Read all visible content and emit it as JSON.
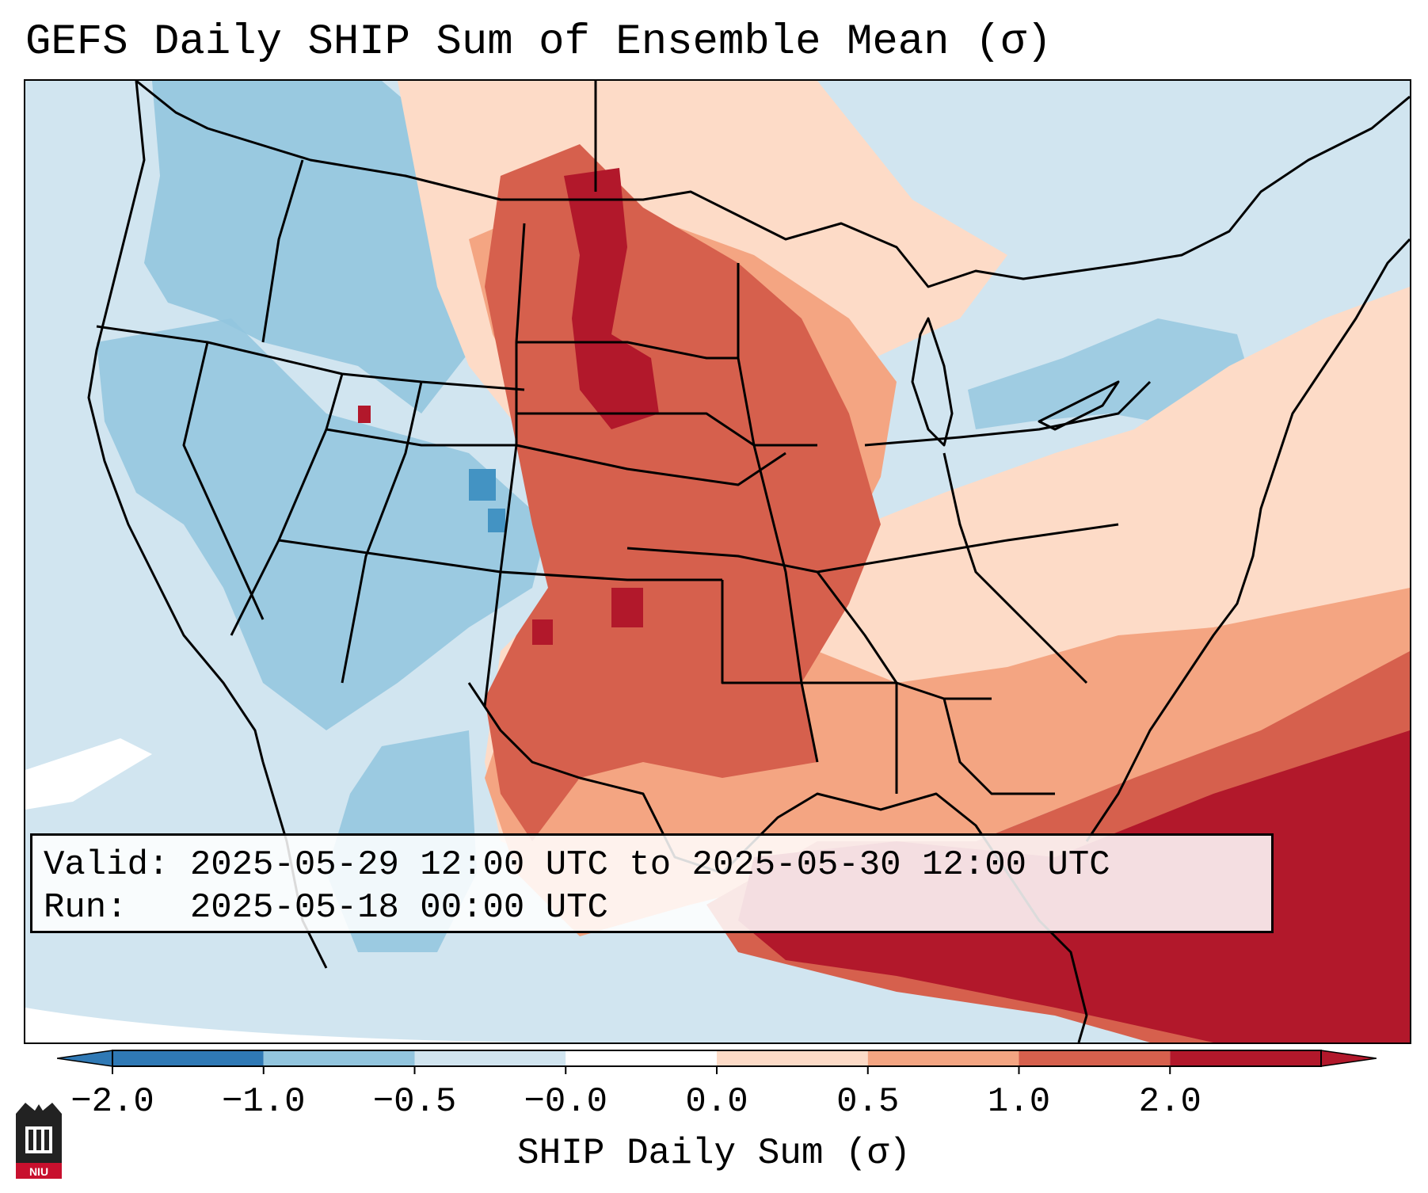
{
  "title": "GEFS Daily SHIP Sum of Ensemble Mean (σ)",
  "info": {
    "valid_label": "Valid:",
    "valid_value": "2025-05-29 12:00 UTC to 2025-05-30 12:00 UTC",
    "run_label": "Run:",
    "run_value": "2025-05-18 00:00 UTC"
  },
  "colorbar": {
    "label": "SHIP Daily Sum (σ)",
    "ticks": [
      "−2.0",
      "−1.0",
      "−0.5",
      "−0.0",
      "0.0",
      "0.5",
      "1.0",
      "2.0"
    ],
    "bins": [
      "#2f79b5",
      "#92c5de",
      "#d1e5f0",
      "#ffffff",
      "#fddbc7",
      "#f4a582",
      "#d6604d",
      "#b2182b"
    ]
  },
  "logo": {
    "text": "NIU",
    "color": "#c8102e"
  },
  "colors": {
    "strong_neg": "#4393c3",
    "neg": "#92c5de",
    "weak_neg": "#d1e5f0",
    "weak_pos": "#fddbc7",
    "pos": "#f4a582",
    "strong_pos": "#d6604d",
    "very_strong_pos": "#b2182b",
    "border": "#000000"
  }
}
